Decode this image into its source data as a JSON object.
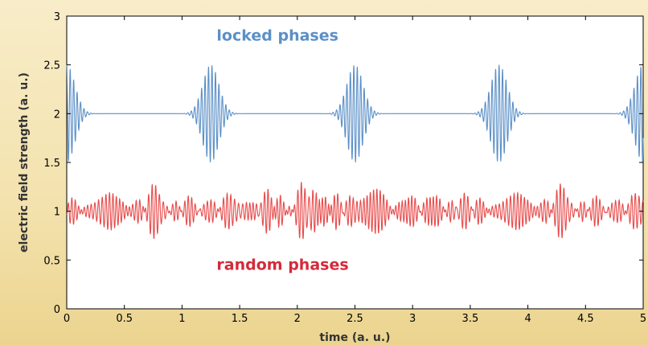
{
  "chart_data": {
    "type": "line",
    "title": "",
    "xlabel": "time (a. u.)",
    "ylabel": "electric field strength (a. u.)",
    "xlim": [
      0,
      5
    ],
    "ylim": [
      0,
      3
    ],
    "xticks": [
      0,
      0.5,
      1,
      1.5,
      2,
      2.5,
      3,
      3.5,
      4,
      4.5,
      5
    ],
    "xtick_labels": [
      "0",
      "0.5",
      "1",
      "1.5",
      "2",
      "2.5",
      "3",
      "3.5",
      "4",
      "4.5",
      "5"
    ],
    "yticks": [
      0,
      0.5,
      1,
      1.5,
      2,
      2.5,
      3
    ],
    "ytick_labels": [
      "0",
      "0.5",
      "1",
      "1.5",
      "2",
      "2.5",
      "3"
    ],
    "grid": false,
    "legend": "none",
    "series": [
      {
        "name": "locked phases",
        "color": "#5b8fc7",
        "baseline": 2,
        "peak_amplitude": 0.5,
        "pulse_centers": [
          0,
          1.25,
          2.5,
          3.75,
          5
        ],
        "pulse_width": 0.1,
        "oscillation_period": 0.03
      },
      {
        "name": "random phases",
        "color": "#e84a4a",
        "baseline": 1,
        "amplitude_range": [
          0.1,
          0.3
        ],
        "oscillation_period": 0.03
      }
    ],
    "annotations": [
      {
        "text": "locked phases",
        "x": 1.3,
        "y": 2.75,
        "color": "#5b8fc7"
      },
      {
        "text": "random phases",
        "x": 1.3,
        "y": 0.4,
        "color": "#d42a3a"
      }
    ]
  }
}
